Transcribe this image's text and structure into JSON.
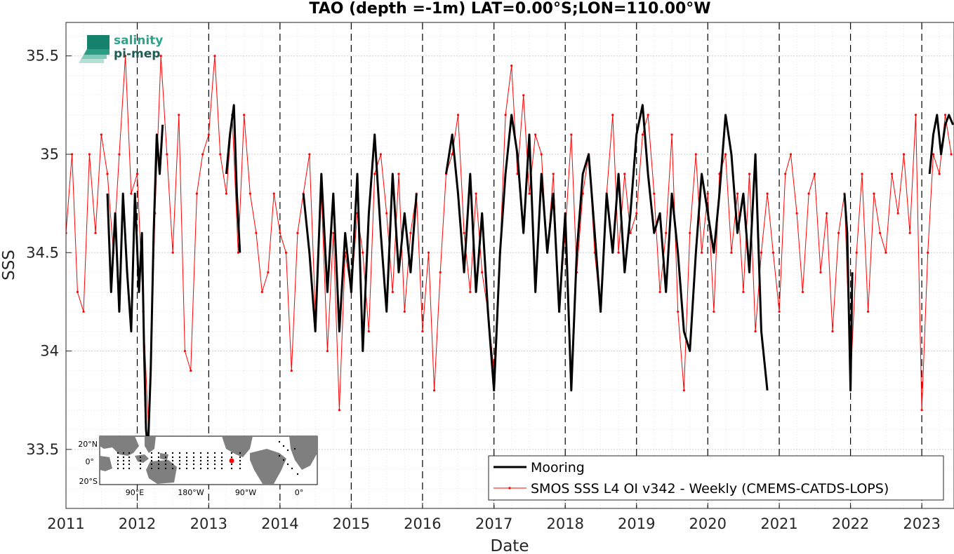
{
  "chart_data": {
    "type": "line",
    "title": "TAO (depth =-1m) LAT=0.00°S;LON=110.00°W",
    "xlabel": "Date",
    "ylabel": "SSS",
    "xlim": [
      "2011-01-01",
      "2023-06-15"
    ],
    "ylim": [
      33.2,
      35.67
    ],
    "x_ticks": [
      "2011",
      "2012",
      "2013",
      "2014",
      "2015",
      "2016",
      "2017",
      "2018",
      "2019",
      "2020",
      "2021",
      "2022",
      "2023"
    ],
    "y_ticks": [
      "33.5",
      "34",
      "34.5",
      "35",
      "35.5"
    ],
    "grid": true,
    "year_boundaries_dashed": true,
    "legend_position": "bottom-right",
    "series": [
      {
        "name": "Mooring",
        "color": "#000000",
        "style": "thick-line",
        "x": [
          "2011-08-01",
          "2011-08-20",
          "2011-09-10",
          "2011-10-01",
          "2011-10-20",
          "2011-11-10",
          "2011-12-01",
          "2011-12-20",
          "2012-01-10",
          "2012-01-25",
          "2012-02-05",
          "2012-02-15",
          "2012-02-25",
          "2012-03-10",
          "2012-03-25",
          "2012-04-10",
          "2012-04-25",
          "2012-05-10",
          null,
          "2013-04-01",
          "2013-04-20",
          "2013-05-10",
          "2013-05-25",
          "2013-06-10",
          null,
          "2014-05-01",
          "2014-06-01",
          "2014-07-01",
          "2014-08-01",
          "2014-09-01",
          "2014-10-01",
          "2014-11-01",
          "2014-12-01",
          "2015-01-01",
          "2015-02-01",
          "2015-03-01",
          "2015-04-01",
          "2015-05-01",
          "2015-06-01",
          "2015-07-01",
          "2015-08-01",
          "2015-09-01",
          "2015-10-01",
          "2015-11-01",
          "2015-12-01",
          null,
          "2016-05-01",
          "2016-06-01",
          "2016-07-01",
          "2016-08-01",
          "2016-09-01",
          "2016-10-01",
          "2016-11-01",
          "2016-12-01",
          "2017-01-01",
          "2017-02-01",
          "2017-03-01",
          "2017-04-01",
          "2017-05-01",
          "2017-06-01",
          "2017-07-01",
          "2017-08-01",
          "2017-09-01",
          "2017-10-01",
          "2017-11-01",
          "2017-12-01",
          "2018-01-01",
          "2018-02-01",
          "2018-03-01",
          "2018-04-01",
          "2018-05-01",
          "2018-06-01",
          "2018-07-01",
          "2018-08-01",
          "2018-09-01",
          "2018-10-01",
          "2018-11-01",
          "2018-12-01",
          "2019-01-01",
          "2019-02-01",
          "2019-03-01",
          "2019-04-01",
          "2019-05-01",
          "2019-06-01",
          "2019-07-01",
          "2019-08-01",
          "2019-09-01",
          "2019-10-01",
          "2019-11-01",
          "2019-12-01",
          "2020-01-01",
          "2020-02-01",
          "2020-03-01",
          "2020-04-01",
          "2020-05-01",
          "2020-06-01",
          "2020-07-01",
          "2020-08-01",
          "2020-09-01",
          "2020-10-01",
          "2020-11-01",
          null,
          "2021-12-01",
          "2021-12-15",
          "2022-01-01",
          "2022-01-10",
          null,
          "2023-02-10",
          "2023-03-01",
          "2023-03-20",
          "2023-04-10",
          "2023-05-01",
          "2023-05-20",
          "2023-06-10"
        ],
        "y": [
          34.8,
          34.3,
          34.7,
          34.2,
          34.8,
          34.4,
          34.1,
          34.8,
          34.3,
          34.6,
          34.0,
          33.6,
          33.5,
          33.9,
          34.6,
          35.1,
          34.9,
          35.15,
          null,
          34.9,
          35.1,
          35.25,
          34.8,
          34.5,
          null,
          34.8,
          34.5,
          34.1,
          34.9,
          34.3,
          34.8,
          34.1,
          34.6,
          34.3,
          34.9,
          34.0,
          34.7,
          35.1,
          34.6,
          34.2,
          34.9,
          34.4,
          34.7,
          34.4,
          34.8,
          null,
          34.9,
          35.1,
          34.8,
          34.4,
          34.9,
          34.3,
          34.7,
          34.2,
          33.8,
          34.5,
          34.9,
          35.2,
          35.0,
          34.6,
          35.1,
          34.3,
          34.9,
          34.5,
          34.8,
          34.2,
          34.7,
          33.8,
          34.5,
          34.9,
          35.0,
          34.6,
          34.2,
          34.8,
          34.5,
          34.9,
          34.4,
          34.7,
          35.1,
          35.25,
          34.9,
          34.6,
          34.7,
          34.3,
          34.8,
          34.5,
          34.1,
          34.0,
          34.5,
          34.9,
          34.7,
          34.5,
          34.8,
          35.2,
          35.0,
          34.6,
          34.8,
          34.4,
          35.0,
          34.1,
          33.8,
          null,
          34.8,
          34.6,
          33.8,
          34.4,
          null,
          34.9,
          35.1,
          35.2,
          35.0,
          35.15,
          35.2,
          35.15
        ]
      },
      {
        "name": "SMOS SSS L4 OI v342 - Weekly (CMEMS-CATDS-LOPS)",
        "color": "#ff0000",
        "style": "thin-line-with-dots",
        "x": [
          "2011-01-01",
          "2011-02-01",
          "2011-03-01",
          "2011-04-01",
          "2011-05-01",
          "2011-06-01",
          "2011-07-01",
          "2011-08-01",
          "2011-09-01",
          "2011-10-01",
          "2011-11-01",
          "2011-12-01",
          "2012-01-01",
          "2012-02-01",
          "2012-03-01",
          "2012-04-01",
          "2012-05-01",
          "2012-06-01",
          "2012-07-01",
          "2012-08-01",
          "2012-09-01",
          "2012-10-01",
          "2012-11-01",
          "2012-12-01",
          "2013-01-01",
          "2013-02-01",
          "2013-03-01",
          "2013-04-01",
          "2013-05-01",
          "2013-06-01",
          "2013-07-01",
          "2013-08-01",
          "2013-09-01",
          "2013-10-01",
          "2013-11-01",
          "2013-12-01",
          "2014-01-01",
          "2014-02-01",
          "2014-03-01",
          "2014-04-01",
          "2014-05-01",
          "2014-06-01",
          "2014-07-01",
          "2014-08-01",
          "2014-09-01",
          "2014-10-01",
          "2014-11-01",
          "2014-12-01",
          "2015-01-01",
          "2015-02-01",
          "2015-03-01",
          "2015-04-01",
          "2015-05-01",
          "2015-06-01",
          "2015-07-01",
          "2015-08-01",
          "2015-09-01",
          "2015-10-01",
          "2015-11-01",
          "2015-12-01",
          "2016-01-01",
          "2016-02-01",
          "2016-03-01",
          "2016-04-01",
          "2016-05-01",
          "2016-06-01",
          "2016-07-01",
          "2016-08-01",
          "2016-09-01",
          "2016-10-01",
          "2016-11-01",
          "2016-12-01",
          "2017-01-01",
          "2017-02-01",
          "2017-03-01",
          "2017-04-01",
          "2017-05-01",
          "2017-06-01",
          "2017-07-01",
          "2017-08-01",
          "2017-09-01",
          "2017-10-01",
          "2017-11-01",
          "2017-12-01",
          "2018-01-01",
          "2018-02-01",
          "2018-03-01",
          "2018-04-01",
          "2018-05-01",
          "2018-06-01",
          "2018-07-01",
          "2018-08-01",
          "2018-09-01",
          "2018-10-01",
          "2018-11-01",
          "2018-12-01",
          "2019-01-01",
          "2019-02-01",
          "2019-03-01",
          "2019-04-01",
          "2019-05-01",
          "2019-06-01",
          "2019-07-01",
          "2019-08-01",
          "2019-09-01",
          "2019-10-01",
          "2019-11-01",
          "2019-12-01",
          "2020-01-01",
          "2020-02-01",
          "2020-03-01",
          "2020-04-01",
          "2020-05-01",
          "2020-06-01",
          "2020-07-01",
          "2020-08-01",
          "2020-09-01",
          "2020-10-01",
          "2020-11-01",
          "2020-12-01",
          "2021-01-01",
          "2021-02-01",
          "2021-03-01",
          "2021-04-01",
          "2021-05-01",
          "2021-06-01",
          "2021-07-01",
          "2021-08-01",
          "2021-09-01",
          "2021-10-01",
          "2021-11-01",
          "2021-12-01",
          "2022-01-01",
          "2022-02-01",
          "2022-03-01",
          "2022-04-01",
          "2022-05-01",
          "2022-06-01",
          "2022-07-01",
          "2022-08-01",
          "2022-09-01",
          "2022-10-01",
          "2022-11-01",
          "2022-12-01",
          "2023-01-01",
          "2023-02-01",
          "2023-03-01",
          "2023-04-01",
          "2023-05-01",
          "2023-06-01"
        ],
        "y": [
          34.6,
          35.0,
          34.3,
          34.2,
          35.0,
          34.6,
          35.1,
          34.9,
          34.5,
          35.0,
          35.5,
          34.8,
          34.9,
          34.2,
          33.55,
          34.7,
          35.5,
          35.0,
          34.5,
          35.2,
          34.0,
          33.9,
          34.8,
          35.0,
          35.1,
          35.5,
          35.0,
          34.8,
          35.2,
          34.5,
          35.2,
          34.8,
          34.6,
          34.3,
          34.4,
          34.8,
          34.6,
          34.5,
          33.9,
          34.6,
          34.8,
          35.0,
          34.2,
          34.8,
          34.0,
          34.6,
          33.7,
          34.5,
          34.3,
          34.7,
          34.5,
          34.1,
          34.9,
          35.0,
          34.7,
          34.3,
          34.9,
          34.2,
          34.6,
          34.8,
          34.1,
          34.5,
          33.8,
          34.4,
          34.9,
          35.0,
          35.2,
          34.6,
          34.3,
          34.8,
          34.4,
          34.2,
          33.9,
          34.5,
          35.2,
          35.45,
          34.9,
          35.3,
          34.8,
          35.1,
          35.0,
          34.5,
          34.9,
          34.2,
          34.6,
          35.1,
          34.4,
          34.8,
          35.0,
          34.5,
          34.2,
          34.8,
          35.2,
          34.5,
          34.9,
          34.6,
          34.7,
          35.1,
          35.2,
          34.8,
          34.3,
          34.6,
          35.1,
          34.2,
          33.8,
          34.6,
          35.0,
          34.5,
          34.8,
          34.2,
          34.9,
          35.0,
          34.5,
          34.8,
          34.3,
          34.9,
          34.1,
          34.5,
          34.8,
          34.5,
          34.2,
          34.9,
          35.0,
          34.7,
          34.3,
          34.8,
          34.9,
          34.4,
          34.7,
          34.1,
          34.6,
          34.8,
          33.85,
          34.5,
          34.9,
          34.2,
          34.8,
          34.6,
          34.5,
          34.9,
          34.7,
          35.0,
          34.6,
          35.2,
          33.7,
          34.5,
          35.0,
          34.9,
          35.2,
          35.0
        ]
      }
    ],
    "inset_map": {
      "y_labels": [
        "20°N",
        "0°",
        "20°S"
      ],
      "x_labels": [
        "90°E",
        "180°W",
        "90°W",
        "0°"
      ],
      "highlighted_site": "0°, 110°W",
      "site_color": "#ff0000",
      "land_color": "#808080"
    },
    "logo_lines": [
      "salinity",
      "pi-mep"
    ]
  },
  "colors": {
    "mooring": "#000000",
    "smos": "#ff0000",
    "grid": "#d9d9d9",
    "axis": "#262626"
  }
}
